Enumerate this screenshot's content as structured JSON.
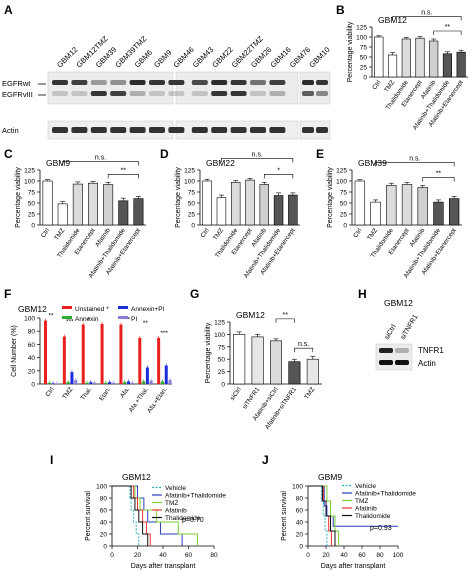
{
  "panels": {
    "A": {
      "letter": "A",
      "lanes": [
        "GBM12",
        "GBM12TMZ",
        "GBM39",
        "GBM39TMZ",
        "GBM6",
        "GBM9",
        "GBM46",
        "GBM43",
        "GBM22",
        "GBM22TMZ",
        "GBM26",
        "GBM16",
        "GBM76",
        "GBM10"
      ],
      "row_labels": [
        "EGFRwt",
        "EGFRvIII",
        "Actin"
      ]
    },
    "B": {
      "letter": "B",
      "title": "GBM12",
      "ylabel": "Percentage viability",
      "categories": [
        "Ctrl",
        "TMZ",
        "Thalidomide",
        "Etanercept",
        "Afatinib",
        "Afatinib+Thalidomide",
        "Afatinib+Etanercept"
      ],
      "values": [
        100,
        55,
        95,
        97,
        90,
        58,
        62
      ],
      "errors": [
        3,
        6,
        4,
        4,
        5,
        5,
        5
      ],
      "ylim": [
        0,
        125
      ],
      "yticks": [
        0,
        25,
        50,
        75,
        100,
        125
      ],
      "sig": [
        {
          "from": 1,
          "to": 6,
          "label": "n.s."
        },
        {
          "from": 4,
          "to": 6,
          "label": "**"
        }
      ]
    },
    "C": {
      "letter": "C",
      "title": "GBM9",
      "ylabel": "Percentage viability",
      "categories": [
        "Ctrl",
        "TMZ",
        "Thalidomide",
        "Etanercept",
        "Afatinib",
        "Afatinib+Thalidomide",
        "Afatinib+Etanercept"
      ],
      "values": [
        100,
        48,
        93,
        95,
        92,
        55,
        60
      ],
      "errors": [
        3,
        5,
        5,
        4,
        5,
        6,
        5
      ],
      "ylim": [
        0,
        125
      ],
      "yticks": [
        0,
        25,
        50,
        75,
        100,
        125
      ],
      "sig": [
        {
          "from": 1,
          "to": 6,
          "label": "n.s."
        },
        {
          "from": 4,
          "to": 6,
          "label": "**"
        }
      ]
    },
    "D": {
      "letter": "D",
      "title": "GBM22",
      "ylabel": "Percentage viability",
      "categories": [
        "Ctrl",
        "TMZ",
        "Thalidomide",
        "Etanercept",
        "Afatinib",
        "Afatinib+Thalidomide",
        "Afatinib+Etanercept"
      ],
      "values": [
        100,
        62,
        97,
        102,
        92,
        67,
        68
      ],
      "errors": [
        4,
        6,
        4,
        4,
        5,
        6,
        5
      ],
      "ylim": [
        0,
        125
      ],
      "yticks": [
        0,
        25,
        50,
        75,
        100,
        125
      ],
      "sig": [
        {
          "from": 1,
          "to": 6,
          "label": "n.s."
        },
        {
          "from": 4,
          "to": 6,
          "label": "*"
        }
      ]
    },
    "E": {
      "letter": "E",
      "title": "GBM39",
      "ylabel": "Percentage viability",
      "categories": [
        "Ctrl",
        "TMZ",
        "Thalidomide",
        "Etanercept",
        "Afatinib",
        "Afatinib+Thalidomide",
        "Afatinib+Etanercept"
      ],
      "values": [
        100,
        52,
        90,
        92,
        85,
        52,
        60
      ],
      "errors": [
        3,
        5,
        5,
        5,
        5,
        5,
        5
      ],
      "ylim": [
        0,
        125
      ],
      "yticks": [
        0,
        25,
        50,
        75,
        100,
        125
      ],
      "sig": [
        {
          "from": 1,
          "to": 6,
          "label": "n.s."
        },
        {
          "from": 4,
          "to": 6,
          "label": "**"
        }
      ]
    },
    "F": {
      "letter": "F",
      "title": "GBM12",
      "ylabel": "Cell Number (%)",
      "groups": [
        "Ctrl",
        "TMZ",
        "Thal.",
        "Etan.",
        "Afa.",
        "Afa.+Thal.",
        "Afa.+Etan."
      ],
      "series": [
        {
          "name": "Unstained",
          "color": "#e8211e",
          "values": [
            96,
            72,
            90,
            91,
            90,
            70,
            70
          ]
        },
        {
          "name": "Annexin",
          "color": "#2faa2f",
          "values": [
            2,
            3,
            2,
            2,
            3,
            4,
            4
          ]
        },
        {
          "name": "Annexin+PI",
          "color": "#1a2fd8",
          "values": [
            1,
            18,
            3,
            3,
            4,
            25,
            28
          ]
        },
        {
          "name": "PI",
          "color": "#8a7fd8",
          "values": [
            1,
            6,
            2,
            2,
            2,
            5,
            6
          ]
        }
      ],
      "ylim": [
        0,
        100
      ],
      "yticks": [
        0,
        20,
        40,
        60,
        80,
        100
      ],
      "sig": [
        "**",
        "***",
        "*",
        "*",
        "***",
        "**",
        "***"
      ]
    },
    "G": {
      "letter": "G",
      "title": "GBM12",
      "ylabel": "Percentage viability",
      "categories": [
        "siCtrl",
        "siTNFR1",
        "Afatinib+siCtrl",
        "Afatinib+siTNFR1",
        "TMZ"
      ],
      "values": [
        100,
        95,
        87,
        45,
        50
      ],
      "errors": [
        5,
        5,
        4,
        5,
        6
      ],
      "ylim": [
        0,
        125
      ],
      "yticks": [
        0,
        25,
        50,
        75,
        100,
        125
      ],
      "sig": [
        {
          "from": 2,
          "to": 3,
          "label": "**"
        },
        {
          "from": 3,
          "to": 4,
          "label": "n.s."
        }
      ]
    },
    "H": {
      "letter": "H",
      "title": "GBM12",
      "lanes": [
        "siCtrl",
        "siTNFR1"
      ],
      "row_labels": [
        "TNFR1",
        "Actin"
      ]
    },
    "I": {
      "letter": "I",
      "title": "GBM12",
      "ylabel": "Percent survival",
      "xlabel": "Days after transplant",
      "xlim": [
        0,
        80
      ],
      "xticks": [
        0,
        20,
        40,
        60,
        80
      ],
      "ylim": [
        0,
        100
      ],
      "yticks": [
        0,
        20,
        40,
        60,
        80,
        100
      ],
      "pvalue": "p=0.70",
      "series": [
        {
          "name": "Vehicle",
          "color": "#2bb3c4",
          "dashed": true,
          "times": [
            0,
            14,
            15,
            17,
            19,
            20,
            21
          ],
          "surv": [
            100,
            80,
            60,
            40,
            20,
            20,
            0
          ]
        },
        {
          "name": "Afatinib+Thalidomide",
          "color": "#2b3fc2",
          "dashed": false,
          "times": [
            0,
            20,
            25,
            28,
            38,
            55
          ],
          "surv": [
            100,
            80,
            60,
            40,
            20,
            0
          ]
        },
        {
          "name": "TMZ",
          "color": "#7ccf36",
          "dashed": false,
          "times": [
            0,
            18,
            22,
            35,
            52,
            67
          ],
          "surv": [
            100,
            80,
            60,
            40,
            20,
            0
          ]
        },
        {
          "name": "Afatinib",
          "color": "#e2362f",
          "dashed": false,
          "times": [
            0,
            17,
            20,
            24,
            27,
            30
          ],
          "surv": [
            100,
            80,
            60,
            40,
            20,
            0
          ]
        },
        {
          "name": "Thalidomide",
          "color": "#111111",
          "dashed": false,
          "times": [
            0,
            15,
            18,
            21,
            24,
            28
          ],
          "surv": [
            100,
            80,
            60,
            40,
            20,
            0
          ]
        }
      ]
    },
    "J": {
      "letter": "J",
      "title": "GBM9",
      "ylabel": "Percent survival",
      "xlabel": "Days after transplant",
      "xlim": [
        0,
        100
      ],
      "xticks": [
        0,
        20,
        40,
        60,
        80,
        100
      ],
      "ylim": [
        0,
        100
      ],
      "yticks": [
        0,
        20,
        40,
        60,
        80,
        100
      ],
      "pvalue": "p=0.93",
      "series": [
        {
          "name": "Vehicle",
          "color": "#2bb3c4",
          "dashed": true,
          "times": [
            0,
            15,
            17,
            19,
            21
          ],
          "surv": [
            100,
            75,
            50,
            25,
            0
          ]
        },
        {
          "name": "Afatinib+Thalidomide",
          "color": "#2b3fc2",
          "dashed": false,
          "times": [
            0,
            18,
            21,
            28,
            100
          ],
          "surv": [
            100,
            67,
            50,
            33,
            33
          ]
        },
        {
          "name": "TMZ",
          "color": "#7ccf36",
          "dashed": false,
          "times": [
            0,
            21,
            25,
            30,
            34
          ],
          "surv": [
            100,
            75,
            50,
            25,
            0
          ]
        },
        {
          "name": "Afatinib",
          "color": "#e2362f",
          "dashed": false,
          "times": [
            0,
            17,
            20,
            23,
            26
          ],
          "surv": [
            100,
            75,
            50,
            25,
            0
          ]
        },
        {
          "name": "Thalidomide",
          "color": "#111111",
          "dashed": false,
          "times": [
            0,
            16,
            20,
            25,
            30
          ],
          "surv": [
            100,
            75,
            50,
            25,
            0
          ]
        }
      ]
    }
  },
  "chart_data": [
    {
      "type": "bar",
      "title": "GBM12",
      "ylabel": "Percentage viability",
      "categories": [
        "Ctrl",
        "TMZ",
        "Thalidomide",
        "Etanercept",
        "Afatinib",
        "Afatinib+Thalidomide",
        "Afatinib+Etanercept"
      ],
      "values": [
        100,
        55,
        95,
        97,
        90,
        58,
        62
      ],
      "ylim": [
        0,
        125
      ]
    },
    {
      "type": "bar",
      "title": "GBM9",
      "ylabel": "Percentage viability",
      "categories": [
        "Ctrl",
        "TMZ",
        "Thalidomide",
        "Etanercept",
        "Afatinib",
        "Afatinib+Thalidomide",
        "Afatinib+Etanercept"
      ],
      "values": [
        100,
        48,
        93,
        95,
        92,
        55,
        60
      ],
      "ylim": [
        0,
        125
      ]
    },
    {
      "type": "bar",
      "title": "GBM22",
      "ylabel": "Percentage viability",
      "categories": [
        "Ctrl",
        "TMZ",
        "Thalidomide",
        "Etanercept",
        "Afatinib",
        "Afatinib+Thalidomide",
        "Afatinib+Etanercept"
      ],
      "values": [
        100,
        62,
        97,
        102,
        92,
        67,
        68
      ],
      "ylim": [
        0,
        125
      ]
    },
    {
      "type": "bar",
      "title": "GBM39",
      "ylabel": "Percentage viability",
      "categories": [
        "Ctrl",
        "TMZ",
        "Thalidomide",
        "Etanercept",
        "Afatinib",
        "Afatinib+Thalidomide",
        "Afatinib+Etanercept"
      ],
      "values": [
        100,
        52,
        90,
        92,
        85,
        52,
        60
      ],
      "ylim": [
        0,
        125
      ]
    },
    {
      "type": "bar",
      "title": "GBM12",
      "ylabel": "Cell Number (%)",
      "categories": [
        "Ctrl",
        "TMZ",
        "Thal.",
        "Etan.",
        "Afa.",
        "Afa.+Thal.",
        "Afa.+Etan."
      ],
      "series": [
        {
          "name": "Unstained",
          "values": [
            96,
            72,
            90,
            91,
            90,
            70,
            70
          ]
        },
        {
          "name": "Annexin",
          "values": [
            2,
            3,
            2,
            2,
            3,
            4,
            4
          ]
        },
        {
          "name": "Annexin+PI",
          "values": [
            1,
            18,
            3,
            3,
            4,
            25,
            28
          ]
        },
        {
          "name": "PI",
          "values": [
            1,
            6,
            2,
            2,
            2,
            5,
            6
          ]
        }
      ],
      "ylim": [
        0,
        100
      ]
    },
    {
      "type": "bar",
      "title": "GBM12",
      "ylabel": "Percentage viability",
      "categories": [
        "siCtrl",
        "siTNFR1",
        "Afatinib+siCtrl",
        "Afatinib+siTNFR1",
        "TMZ"
      ],
      "values": [
        100,
        95,
        87,
        45,
        50
      ],
      "ylim": [
        0,
        125
      ]
    },
    {
      "type": "line",
      "title": "GBM12",
      "ylabel": "Percent survival",
      "xlabel": "Days after transplant",
      "xlim": [
        0,
        80
      ],
      "ylim": [
        0,
        100
      ]
    },
    {
      "type": "line",
      "title": "GBM9",
      "ylabel": "Percent survival",
      "xlabel": "Days after transplant",
      "xlim": [
        0,
        100
      ],
      "ylim": [
        0,
        100
      ]
    }
  ]
}
